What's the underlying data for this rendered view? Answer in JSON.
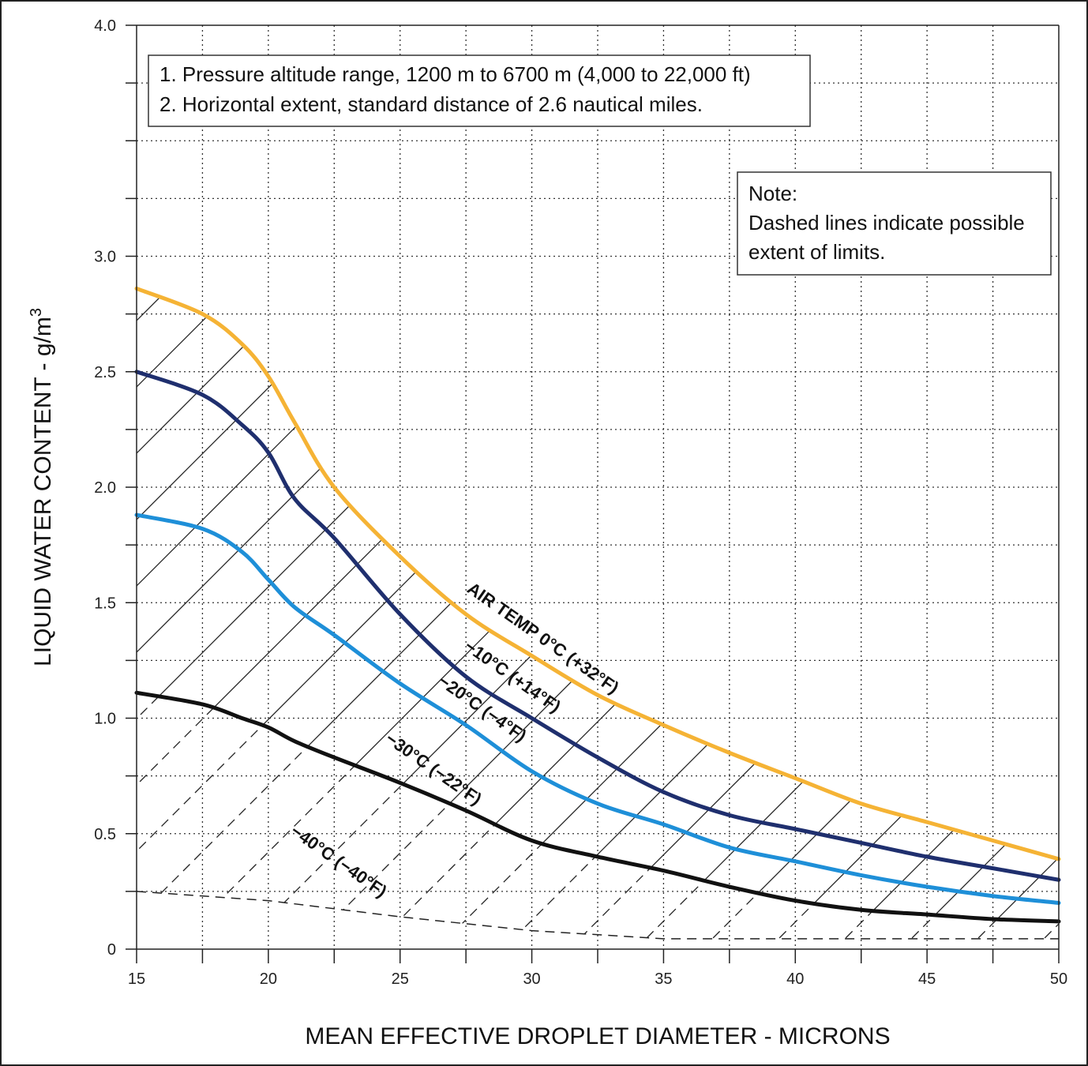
{
  "chart_data": {
    "type": "line",
    "xlabel": "MEAN EFFECTIVE DROPLET DIAMETER - MICRONS",
    "ylabel": "LIQUID WATER CONTENT - g/m",
    "ylabel_superscript": "3",
    "xlim": [
      15,
      50
    ],
    "ylim": [
      0,
      4.0
    ],
    "x_ticks": [
      "15",
      "20",
      "25",
      "30",
      "35",
      "40",
      "45",
      "50"
    ],
    "y_ticks": [
      "0",
      "0.5",
      "1.0",
      "1.5",
      "2.0",
      "2.5",
      "3.0",
      "4.0"
    ],
    "grid": true,
    "grid_style": "dotted",
    "series": [
      {
        "name": "AIR TEMP 0°C (+32°F)",
        "color": "#F5B335",
        "x": [
          15,
          17.5,
          19,
          20,
          21,
          22.5,
          25,
          27.5,
          30,
          32.5,
          35,
          37.5,
          40,
          42.5,
          45,
          47.5,
          50
        ],
        "y": [
          2.86,
          2.75,
          2.62,
          2.48,
          2.28,
          2.0,
          1.7,
          1.45,
          1.27,
          1.1,
          0.97,
          0.85,
          0.74,
          0.63,
          0.55,
          0.47,
          0.39
        ]
      },
      {
        "name": "−10°C (+14°F)",
        "color": "#1F2F6E",
        "x": [
          15,
          17.5,
          19,
          20,
          21,
          22.5,
          25,
          27.5,
          30,
          32.5,
          35,
          37.5,
          40,
          42.5,
          45,
          47.5,
          50
        ],
        "y": [
          2.5,
          2.4,
          2.27,
          2.15,
          1.95,
          1.78,
          1.45,
          1.18,
          1.0,
          0.83,
          0.68,
          0.58,
          0.52,
          0.46,
          0.4,
          0.35,
          0.3
        ]
      },
      {
        "name": "−20°C (−4°F)",
        "color": "#1E8FD8",
        "x": [
          15,
          17.5,
          19,
          20,
          21,
          22.5,
          25,
          27.5,
          30,
          32.5,
          35,
          37.5,
          40,
          42.5,
          45,
          47.5,
          50
        ],
        "y": [
          1.88,
          1.82,
          1.72,
          1.6,
          1.48,
          1.36,
          1.15,
          0.97,
          0.77,
          0.63,
          0.54,
          0.44,
          0.38,
          0.32,
          0.27,
          0.23,
          0.2
        ]
      },
      {
        "name": "−30°C (−22°F)",
        "color": "#111111",
        "x": [
          15,
          17.5,
          19,
          20,
          21,
          22.5,
          25,
          27.5,
          30,
          32.5,
          35,
          37.5,
          40,
          42.5,
          45,
          47.5,
          50
        ],
        "y": [
          1.11,
          1.06,
          1.0,
          0.96,
          0.9,
          0.83,
          0.72,
          0.6,
          0.47,
          0.4,
          0.34,
          0.27,
          0.21,
          0.17,
          0.15,
          0.13,
          0.12
        ]
      }
    ],
    "dashed_series": {
      "name": "−40°C (−40°F)",
      "x": [
        15,
        20,
        25,
        30,
        35,
        40,
        45,
        50
      ],
      "y": [
        0.25,
        0.21,
        0.14,
        0.08,
        0.045,
        0.045,
        0.045,
        0.045
      ]
    },
    "annotations": [
      {
        "text": "AIR TEMP 0°C (+32°F)",
        "x": 27.5,
        "y": 1.55
      },
      {
        "text": "−10°C (+14°F)",
        "x": 27.4,
        "y": 1.3
      },
      {
        "text": "−20°C (−4°F)",
        "x": 26.4,
        "y": 1.15
      },
      {
        "text": "−30°C (−22°F)",
        "x": 24.4,
        "y": 0.9
      },
      {
        "text": "−40°C (−40°F)",
        "x": 20.8,
        "y": 0.5
      }
    ],
    "notes_box": {
      "lines": [
        "1. Pressure altitude range, 1200 m to 6700 m (4,000 to 22,000 ft)",
        "2. Horizontal extent, standard distance of 2.6 nautical miles."
      ]
    },
    "note_box": {
      "lines": [
        "Note:",
        "Dashed lines indicate possible",
        "extent of limits."
      ]
    }
  }
}
